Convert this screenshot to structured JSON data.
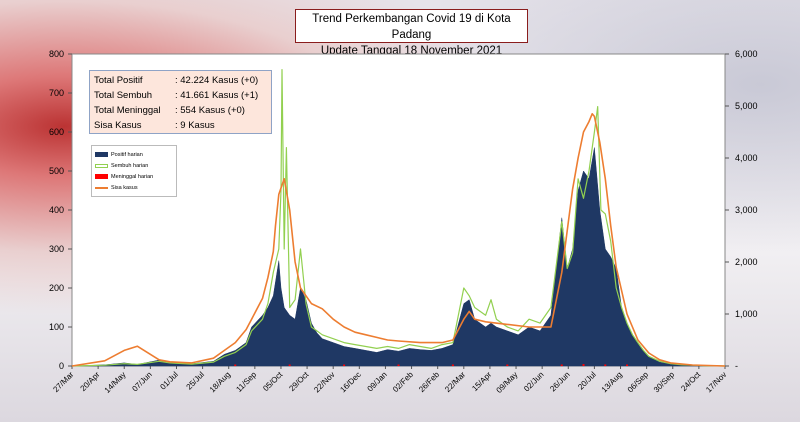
{
  "title_line1": "Trend Perkembangan Covid 19 di Kota Padang",
  "title_line2": "Update Tanggal 18 November 2021",
  "summary": [
    {
      "label": "Total Positif",
      "value": ": 42.224 Kasus  (+0)"
    },
    {
      "label": "Total Sembuh",
      "value": ": 41.661 Kasus  (+1)"
    },
    {
      "label": "Total Meninggal",
      "value": ":  554 Kasus (+0)"
    },
    {
      "label": "Sisa Kasus",
      "value": ":  9 Kasus"
    }
  ],
  "chart_data": {
    "type": "bar",
    "x_tick_labels": [
      "27/Mar",
      "20/Apr",
      "14/May",
      "07/Jun",
      "01/Jul",
      "25/Jul",
      "18/Aug",
      "11/Sep",
      "05/Oct",
      "29/Oct",
      "22/Nov",
      "16/Dec",
      "09/Jan",
      "02/Feb",
      "26/Feb",
      "22/Mar",
      "15/Apr",
      "09/May",
      "02/Jun",
      "26/Jun",
      "20/Jul",
      "13/Aug",
      "06/Sep",
      "30/Sep",
      "24/Oct",
      "17/Nov"
    ],
    "y_left_ticks": [
      "0",
      "100",
      "200",
      "300",
      "400",
      "500",
      "600",
      "700",
      "800"
    ],
    "y_right_ticks": [
      "-",
      "1,000",
      "2,000",
      "3,000",
      "4,000",
      "5,000",
      "6,000"
    ],
    "ylim_left": [
      0,
      800
    ],
    "ylim_right": [
      0,
      6000
    ],
    "grid": false,
    "legend_position": "top-left",
    "series": [
      {
        "name": "Positif harian",
        "color": "#1f3864",
        "axis": "left",
        "style": "area",
        "x": [
          0,
          30,
          48,
          60,
          80,
          90,
          110,
          130,
          140,
          150,
          160,
          165,
          175,
          180,
          185,
          190,
          192,
          195,
          200,
          205,
          210,
          215,
          220,
          225,
          230,
          240,
          250,
          260,
          270,
          280,
          290,
          300,
          310,
          320,
          330,
          340,
          350,
          360,
          365,
          370,
          380,
          385,
          390,
          400,
          410,
          420,
          430,
          440,
          450,
          455,
          460,
          465,
          470,
          475,
          480,
          485,
          490,
          495,
          500,
          505,
          510,
          515,
          520,
          525,
          530,
          540,
          550,
          560,
          570,
          580,
          600
        ],
        "values": [
          0,
          3,
          8,
          4,
          15,
          10,
          6,
          12,
          30,
          40,
          60,
          100,
          130,
          150,
          180,
          270,
          200,
          150,
          130,
          120,
          200,
          170,
          110,
          85,
          70,
          60,
          50,
          45,
          40,
          35,
          42,
          38,
          45,
          42,
          40,
          45,
          55,
          160,
          170,
          120,
          100,
          110,
          100,
          90,
          80,
          100,
          90,
          130,
          380,
          250,
          300,
          450,
          500,
          480,
          560,
          400,
          300,
          280,
          250,
          150,
          110,
          80,
          60,
          40,
          25,
          10,
          5,
          3,
          2,
          1,
          0
        ]
      },
      {
        "name": "Sembuh harian",
        "color": "#92d050",
        "axis": "left",
        "style": "line",
        "x": [
          0,
          30,
          48,
          60,
          80,
          90,
          110,
          130,
          140,
          150,
          160,
          165,
          175,
          180,
          185,
          190,
          192,
          193,
          195,
          197,
          200,
          205,
          210,
          215,
          220,
          225,
          230,
          240,
          250,
          260,
          270,
          280,
          290,
          300,
          310,
          320,
          330,
          340,
          350,
          360,
          365,
          370,
          380,
          385,
          390,
          400,
          410,
          420,
          430,
          440,
          450,
          455,
          460,
          465,
          470,
          475,
          480,
          483,
          486,
          490,
          495,
          500,
          505,
          510,
          515,
          520,
          525,
          530,
          540,
          550,
          560,
          570,
          580,
          600
        ],
        "values": [
          0,
          2,
          6,
          4,
          12,
          8,
          5,
          10,
          25,
          35,
          55,
          90,
          120,
          160,
          240,
          300,
          450,
          760,
          300,
          560,
          150,
          170,
          300,
          160,
          100,
          90,
          80,
          70,
          60,
          55,
          50,
          45,
          50,
          45,
          55,
          50,
          45,
          55,
          60,
          200,
          180,
          150,
          130,
          170,
          120,
          100,
          90,
          120,
          110,
          150,
          370,
          250,
          290,
          480,
          430,
          500,
          600,
          665,
          400,
          390,
          320,
          200,
          150,
          110,
          80,
          60,
          40,
          25,
          12,
          6,
          3,
          2,
          1,
          0
        ]
      },
      {
        "name": "Meninggal harian",
        "color": "#ff0000",
        "axis": "left",
        "style": "bars",
        "x": [
          150,
          200,
          250,
          300,
          350,
          400,
          450,
          470,
          490,
          510
        ],
        "values": [
          1,
          3,
          2,
          1,
          1,
          2,
          3,
          5,
          4,
          2
        ]
      },
      {
        "name": "Sisa kasus",
        "color": "#ed7d31",
        "axis": "right",
        "style": "line",
        "x": [
          0,
          30,
          48,
          60,
          80,
          90,
          110,
          130,
          140,
          150,
          160,
          165,
          175,
          180,
          185,
          187,
          190,
          195,
          200,
          205,
          210,
          220,
          230,
          240,
          250,
          260,
          270,
          280,
          290,
          300,
          320,
          340,
          350,
          360,
          365,
          370,
          380,
          400,
          420,
          440,
          450,
          455,
          460,
          465,
          470,
          475,
          478,
          480,
          485,
          490,
          495,
          500,
          510,
          520,
          530,
          540,
          550,
          570,
          600
        ],
        "values": [
          0,
          100,
          300,
          380,
          120,
          80,
          60,
          150,
          300,
          450,
          700,
          900,
          1300,
          1700,
          2200,
          2700,
          3300,
          3600,
          3000,
          2000,
          1500,
          1200,
          1100,
          900,
          750,
          650,
          600,
          550,
          500,
          480,
          450,
          450,
          500,
          900,
          1050,
          900,
          850,
          800,
          750,
          750,
          1800,
          2600,
          3400,
          4000,
          4500,
          4700,
          4850,
          4800,
          4300,
          3600,
          2700,
          1900,
          1000,
          500,
          250,
          120,
          60,
          20,
          0
        ]
      }
    ]
  }
}
